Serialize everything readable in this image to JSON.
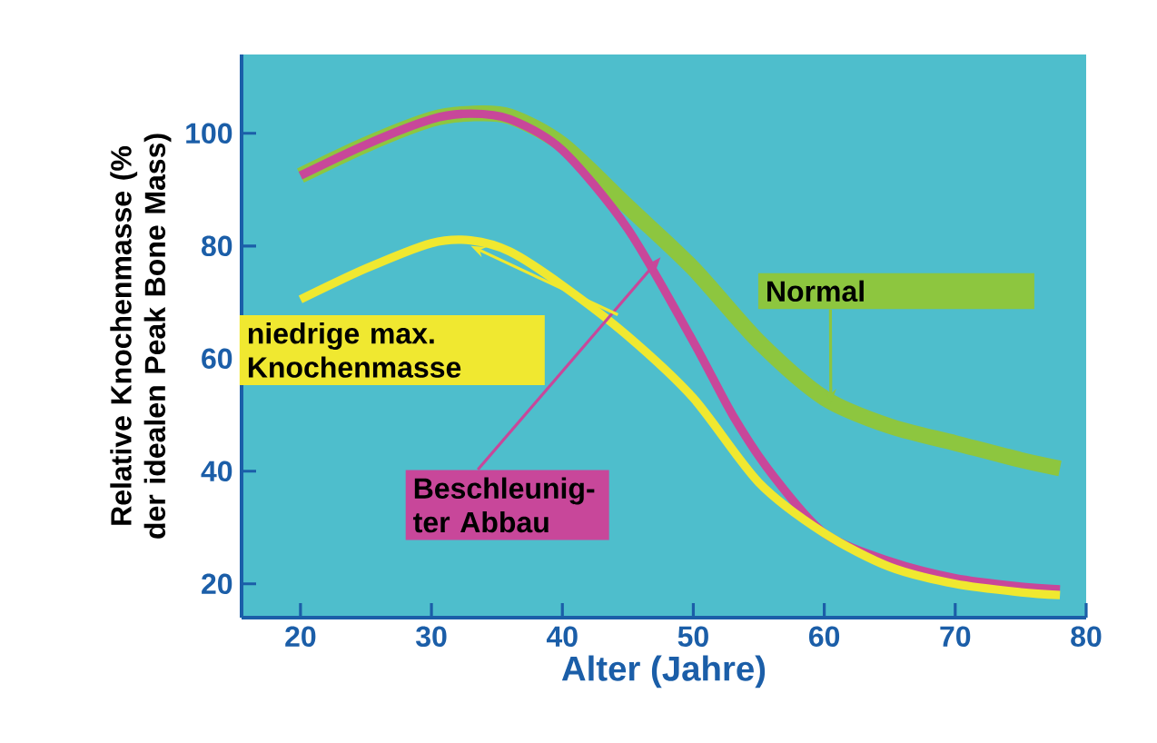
{
  "chart_data": {
    "type": "line",
    "xlabel": "Alter (Jahre)",
    "ylabel": "Relative Knochenmasse (% der idealen Peak Bone Mass)",
    "xlim": [
      15.5,
      80
    ],
    "ylim": [
      14,
      114
    ],
    "xticks": [
      20,
      30,
      40,
      50,
      60,
      70,
      80
    ],
    "yticks": [
      20,
      40,
      60,
      80,
      100
    ],
    "legend": false,
    "grid": false,
    "marker": "none",
    "line_style": "solid",
    "series": [
      {
        "name": "Normal",
        "color": "#8dc63f",
        "x": [
          20,
          25,
          30,
          33,
          36,
          40,
          45,
          50,
          55,
          60,
          65,
          70,
          75,
          78
        ],
        "values": [
          92.5,
          98,
          102.5,
          103.5,
          103,
          98,
          87,
          76,
          63,
          53,
          48,
          45,
          42,
          40.5
        ]
      },
      {
        "name": "Beschleunig-ter Abbau",
        "color": "#c8479a",
        "x": [
          20,
          25,
          30,
          33,
          36,
          40,
          45,
          50,
          53,
          56,
          60,
          65,
          70,
          75,
          78
        ],
        "values": [
          92.5,
          98,
          102.5,
          103.5,
          102.5,
          97,
          83,
          63,
          50,
          39.5,
          29,
          24,
          21,
          19.5,
          19
        ]
      },
      {
        "name": "niedrige max. Knochenmasse",
        "color": "#f0e830",
        "x": [
          20,
          25,
          30,
          33,
          36,
          40,
          45,
          50,
          55,
          60,
          65,
          70,
          75,
          78
        ],
        "values": [
          70.5,
          76,
          80.5,
          81,
          79,
          73,
          64,
          53,
          38,
          29,
          23,
          20,
          18.5,
          18
        ]
      }
    ]
  }
}
